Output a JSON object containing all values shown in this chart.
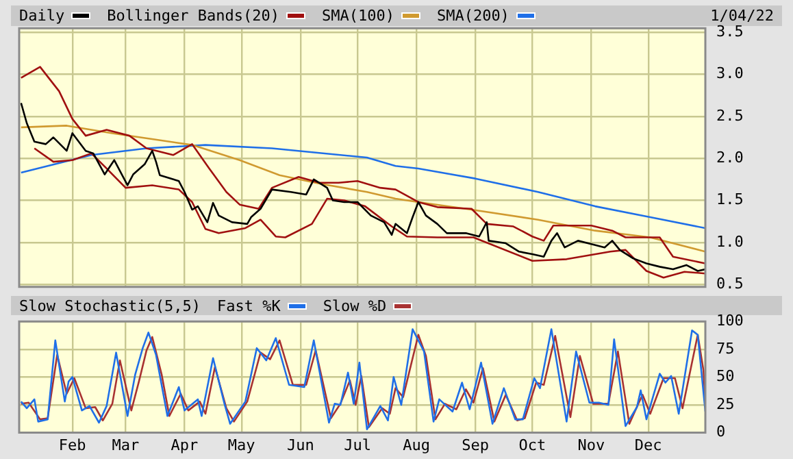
{
  "chart_data": [
    {
      "type": "line",
      "legend": "top left",
      "grid": true,
      "tick_labels": "y",
      "annotations": [
        "1/04/22"
      ],
      "xlim": [
        "--01-04",
        "--12-31"
      ],
      "xticks": [
        {
          "value": "--02-01",
          "label": null
        },
        {
          "value": "--03-01",
          "label": null
        },
        {
          "value": "--04-01",
          "label": null
        },
        {
          "value": "--05-01",
          "label": null
        },
        {
          "value": "--06-01",
          "label": null
        },
        {
          "value": "--07-01",
          "label": null
        },
        {
          "value": "--08-01",
          "label": null
        },
        {
          "value": "--09-01",
          "label": null
        },
        {
          "value": "--10-01",
          "label": null
        },
        {
          "value": "--11-01",
          "label": null
        },
        {
          "value": "--12-01",
          "label": null
        }
      ],
      "ylim": [
        0.47,
        3.55
      ],
      "yticks": [
        0.5,
        {
          "value": 1,
          "label": "1.0"
        },
        1.5,
        {
          "value": 2,
          "label": "2.0"
        },
        2.5,
        {
          "value": 3,
          "label": "3.0"
        },
        3.5
      ],
      "series": [
        {
          "name": "Daily",
          "color": "#000000",
          "x": [
            "--01-05",
            "--01-08",
            "--01-12",
            "--01-18",
            "--01-22",
            "--01-29",
            "--02-01",
            "--02-08",
            "--02-12",
            "--02-18",
            "--02-23",
            "--03-02",
            "--03-05",
            "--03-11",
            "--03-15",
            "--03-17",
            "--03-19",
            "--03-29",
            "--04-01",
            "--04-05",
            "--04-08",
            "--04-13",
            "--04-16",
            "--04-19",
            "--04-26",
            "--05-04",
            "--05-06",
            "--05-11",
            "--05-17",
            "--05-27",
            "--06-04",
            "--06-08",
            "--06-15",
            "--06-18",
            "--06-24",
            "--07-01",
            "--07-08",
            "--07-15",
            "--07-19",
            "--07-21",
            "--07-27",
            "--07-30",
            "--08-02",
            "--08-06",
            "--08-12",
            "--08-17",
            "--08-27",
            "--09-03",
            "--09-07",
            "--09-08",
            "--09-17",
            "--09-24",
            "--10-01",
            "--10-07",
            "--10-11",
            "--10-14",
            "--10-18",
            "--10-25",
            "--11-01",
            "--11-08",
            "--11-12",
            "--11-16",
            "--11-23",
            "--11-30",
            "--12-07",
            "--12-14",
            "--12-21",
            "--12-27",
            "--12-31"
          ],
          "values": [
            2.66,
            2.42,
            2.2,
            2.17,
            2.25,
            2.09,
            2.3,
            2.09,
            2.06,
            1.81,
            1.98,
            1.68,
            1.81,
            1.93,
            2.09,
            1.96,
            1.8,
            1.73,
            1.6,
            1.39,
            1.43,
            1.24,
            1.47,
            1.32,
            1.24,
            1.22,
            1.3,
            1.4,
            1.63,
            1.6,
            1.57,
            1.75,
            1.65,
            1.5,
            1.48,
            1.48,
            1.32,
            1.24,
            1.09,
            1.22,
            1.11,
            1.3,
            1.48,
            1.32,
            1.22,
            1.11,
            1.11,
            1.07,
            1.24,
            1.02,
            0.99,
            0.89,
            0.86,
            0.83,
            1.02,
            1.11,
            0.94,
            1.02,
            0.98,
            0.94,
            1.02,
            0.91,
            0.81,
            0.75,
            0.71,
            0.68,
            0.73,
            0.66,
            0.68
          ]
        },
        {
          "name": "Bollinger Bands(20)",
          "color": "#a01010",
          "x": [
            "--01-05",
            "--01-15",
            "--01-25",
            "--02-01",
            "--02-08",
            "--02-19",
            "--03-03",
            "--03-12",
            "--03-26",
            "--04-05",
            "--04-14",
            "--04-23",
            "--04-30",
            "--05-10",
            "--05-17",
            "--05-31",
            "--06-11",
            "--06-21",
            "--07-01",
            "--07-13",
            "--07-21",
            "--08-02",
            "--08-12",
            "--08-30",
            "--09-07",
            "--09-21",
            "--10-01",
            "--10-07",
            "--10-12",
            "--11-01",
            "--11-12",
            "--11-19",
            "--12-07",
            "--12-14",
            "--12-31"
          ],
          "values": [
            2.96,
            3.09,
            2.8,
            2.47,
            2.27,
            2.34,
            2.27,
            2.12,
            2.04,
            2.17,
            1.88,
            1.6,
            1.45,
            1.4,
            1.65,
            1.78,
            1.71,
            1.71,
            1.73,
            1.65,
            1.63,
            1.48,
            1.42,
            1.4,
            1.22,
            1.19,
            1.07,
            1.02,
            1.2,
            1.2,
            1.14,
            1.06,
            1.06,
            0.83,
            0.75
          ]
        },
        {
          "color": "#a01010",
          "x": [
            "--01-12",
            "--01-22",
            "--02-01",
            "--02-11",
            "--02-19",
            "--03-01",
            "--03-15",
            "--03-29",
            "--04-05",
            "--04-12",
            "--04-19",
            "--05-03",
            "--05-11",
            "--05-19",
            "--05-24",
            "--06-07",
            "--06-15",
            "--06-24",
            "--07-05",
            "--07-19",
            "--07-27",
            "--08-12",
            "--08-31",
            "--10-01",
            "--10-19",
            "--11-11",
            "--11-19",
            "--11-30",
            "--12-09",
            "--12-20",
            "--12-31"
          ],
          "values": [
            2.12,
            1.96,
            1.98,
            2.06,
            1.88,
            1.65,
            1.68,
            1.63,
            1.48,
            1.16,
            1.11,
            1.17,
            1.27,
            1.07,
            1.06,
            1.22,
            1.52,
            1.5,
            1.43,
            1.19,
            1.07,
            1.06,
            1.06,
            0.78,
            0.8,
            0.89,
            0.91,
            0.66,
            0.58,
            0.65,
            0.63
          ]
        },
        {
          "name": "SMA(100)",
          "color": "#d09a30",
          "x": [
            "--01-05",
            "--01-29",
            "--02-22",
            "--03-18",
            "--04-05",
            "--04-30",
            "--05-21",
            "--06-11",
            "--07-06",
            "--07-21",
            "--08-02",
            "--08-30",
            "--10-04",
            "--11-03",
            "--12-02",
            "--12-31"
          ],
          "values": [
            2.37,
            2.39,
            2.3,
            2.22,
            2.16,
            1.98,
            1.8,
            1.7,
            1.6,
            1.52,
            1.48,
            1.39,
            1.27,
            1.14,
            1.06,
            0.89
          ]
        },
        {
          "name": "SMA(200)",
          "color": "#1f6fe8",
          "x": [
            "--01-05",
            "--02-11",
            "--03-12",
            "--04-12",
            "--05-17",
            "--07-06",
            "--07-21",
            "--08-02",
            "--09-01",
            "--10-04",
            "--11-03",
            "--12-02",
            "--12-31"
          ],
          "values": [
            1.83,
            2.04,
            2.12,
            2.16,
            2.12,
            2.01,
            1.91,
            1.88,
            1.76,
            1.6,
            1.43,
            1.3,
            1.17
          ]
        }
      ]
    },
    {
      "type": "line",
      "legend": "top left",
      "grid": true,
      "legend_title": "Slow Stochastic(5,5)",
      "xlim": [
        "--01-04",
        "--12-31"
      ],
      "xticks": [
        {
          "value": "--02-01",
          "label": "Feb"
        },
        {
          "value": "--03-01",
          "label": "Mar"
        },
        {
          "value": "--04-01",
          "label": "Apr"
        },
        {
          "value": "--05-01",
          "label": "May"
        },
        {
          "value": "--06-01",
          "label": "Jun"
        },
        {
          "value": "--07-01",
          "label": "Jul"
        },
        {
          "value": "--08-01",
          "label": "Aug"
        },
        {
          "value": "--09-01",
          "label": "Sep"
        },
        {
          "value": "--10-01",
          "label": "Oct"
        },
        {
          "value": "--11-01",
          "label": "Nov"
        },
        {
          "value": "--12-01",
          "label": "Dec"
        }
      ],
      "ylim": [
        0,
        100
      ],
      "yticks": [
        0,
        25,
        50,
        75,
        100
      ],
      "series": [
        {
          "name": "Fast %K",
          "color": "#1f6fe8",
          "x": [
            "--01-05",
            "--01-08",
            "--01-12",
            "--01-14",
            "--01-19",
            "--01-23",
            "--01-28",
            "--01-30",
            "--02-01",
            "--02-06",
            "--02-10",
            "--02-15",
            "--02-19",
            "--02-24",
            "--03-02",
            "--03-06",
            "--03-10",
            "--03-13",
            "--03-17",
            "--03-23",
            "--03-29",
            "--04-01",
            "--04-08",
            "--04-10",
            "--04-16",
            "--04-22",
            "--04-25",
            "--05-03",
            "--05-09",
            "--05-14",
            "--05-19",
            "--05-26",
            "--06-03",
            "--06-08",
            "--06-16",
            "--06-19",
            "--06-22",
            "--06-26",
            "--06-29",
            "--07-02",
            "--07-06",
            "--07-13",
            "--07-17",
            "--07-20",
            "--07-24",
            "--07-30",
            "--08-05",
            "--08-10",
            "--08-13",
            "--08-20",
            "--08-25",
            "--08-29",
            "--09-04",
            "--09-10",
            "--09-16",
            "--09-22",
            "--09-26",
            "--10-02",
            "--10-05",
            "--10-11",
            "--10-19",
            "--10-24",
            "--10-31",
            "--11-05",
            "--11-10",
            "--11-13",
            "--11-19",
            "--11-25",
            "--11-27",
            "--11-30",
            "--12-07",
            "--12-10",
            "--12-13",
            "--12-17",
            "--12-24",
            "--12-27",
            "--12-31"
          ],
          "values": [
            28,
            22,
            30,
            10,
            12,
            83,
            28,
            46,
            50,
            20,
            24,
            9,
            24,
            72,
            15,
            52,
            76,
            90,
            70,
            15,
            41,
            20,
            30,
            15,
            67,
            26,
            8,
            28,
            76,
            65,
            85,
            43,
            41,
            83,
            9,
            26,
            25,
            54,
            26,
            63,
            3,
            24,
            11,
            50,
            25,
            93,
            73,
            10,
            30,
            19,
            45,
            21,
            63,
            8,
            40,
            12,
            12,
            49,
            40,
            93,
            10,
            73,
            27,
            27,
            25,
            84,
            6,
            23,
            38,
            12,
            53,
            45,
            51,
            17,
            92,
            88,
            19
          ]
        },
        {
          "name": "Slow %D",
          "color": "#a83232",
          "x": [
            "--01-05",
            "--01-09",
            "--01-15",
            "--01-19",
            "--01-24",
            "--01-29",
            "--02-02",
            "--02-08",
            "--02-13",
            "--02-17",
            "--02-22",
            "--02-26",
            "--03-04",
            "--03-08",
            "--03-12",
            "--03-15",
            "--03-20",
            "--03-24",
            "--03-30",
            "--04-03",
            "--04-09",
            "--04-12",
            "--04-17",
            "--04-23",
            "--04-27",
            "--05-04",
            "--05-11",
            "--05-16",
            "--05-21",
            "--05-28",
            "--06-04",
            "--06-09",
            "--06-17",
            "--06-22",
            "--06-27",
            "--06-30",
            "--07-03",
            "--07-07",
            "--07-14",
            "--07-18",
            "--07-21",
            "--07-25",
            "--08-02",
            "--08-06",
            "--08-11",
            "--08-16",
            "--08-22",
            "--08-27",
            "--08-31",
            "--09-05",
            "--09-11",
            "--09-17",
            "--09-23",
            "--09-27",
            "--10-03",
            "--10-07",
            "--10-13",
            "--10-21",
            "--10-26",
            "--11-02",
            "--11-10",
            "--11-15",
            "--11-21",
            "--11-26",
            "--11-28",
            "--12-02",
            "--12-09",
            "--12-15",
            "--12-19",
            "--12-27",
            "--12-30",
            "--12-31"
          ],
          "values": [
            26,
            27,
            12,
            13,
            70,
            35,
            49,
            22,
            23,
            11,
            26,
            65,
            20,
            46,
            74,
            86,
            52,
            15,
            35,
            20,
            28,
            17,
            59,
            22,
            10,
            28,
            72,
            66,
            83,
            43,
            43,
            74,
            13,
            26,
            47,
            25,
            51,
            5,
            22,
            17,
            40,
            32,
            88,
            69,
            12,
            26,
            21,
            39,
            27,
            58,
            10,
            34,
            11,
            13,
            45,
            43,
            87,
            14,
            69,
            26,
            26,
            73,
            8,
            27,
            34,
            17,
            49,
            49,
            22,
            88,
            56,
            25
          ]
        }
      ]
    }
  ]
}
